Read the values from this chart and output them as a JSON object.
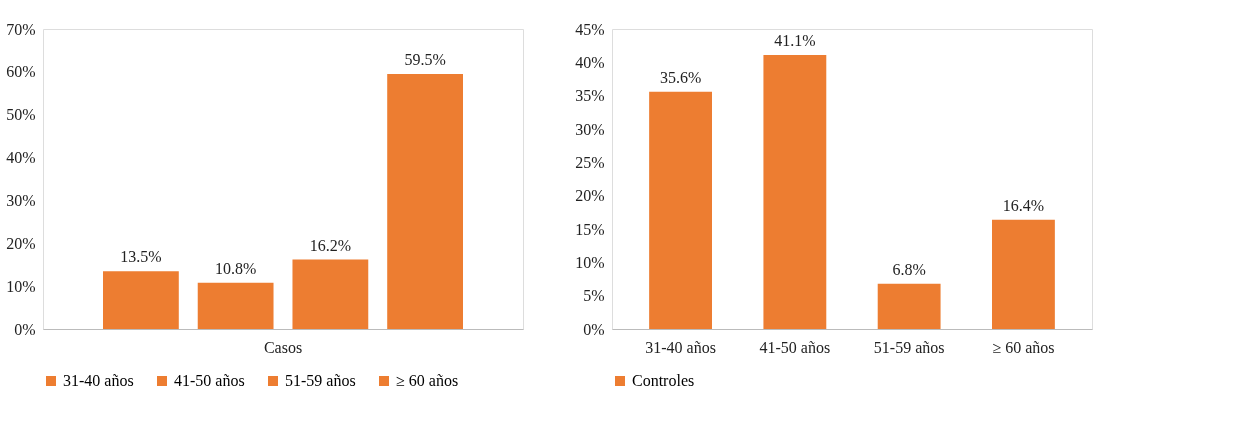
{
  "chart_data": [
    {
      "type": "bar",
      "categories": [
        "Casos"
      ],
      "ylim": [
        0,
        70
      ],
      "yticks": [
        {
          "value": 0,
          "label": "0%"
        },
        {
          "value": 10,
          "label": "10%"
        },
        {
          "value": 20,
          "label": "20%"
        },
        {
          "value": 30,
          "label": "30%"
        },
        {
          "value": 40,
          "label": "40%"
        },
        {
          "value": 50,
          "label": "50%"
        },
        {
          "value": 60,
          "label": "60%"
        },
        {
          "value": 70,
          "label": "70%"
        }
      ],
      "grid": false,
      "legend": "bottom",
      "series": [
        {
          "name": "31-40 años",
          "color": "#ed7d31",
          "values": [
            13.5
          ],
          "value_labels": [
            "13.5%"
          ]
        },
        {
          "name": "41-50 años",
          "color": "#ed7d31",
          "values": [
            10.8
          ],
          "value_labels": [
            "10.8%"
          ]
        },
        {
          "name": "51-59 años",
          "color": "#ed7d31",
          "values": [
            16.2
          ],
          "value_labels": [
            "16.2%"
          ]
        },
        {
          "name": "≥ 60 años",
          "color": "#ed7d31",
          "values": [
            59.5
          ],
          "value_labels": [
            "59.5%"
          ]
        }
      ]
    },
    {
      "type": "bar",
      "categories": [
        "31-40 años",
        "41-50 años",
        "51-59 años",
        "≥ 60 años"
      ],
      "ylim": [
        0,
        45
      ],
      "yticks": [
        {
          "value": 0,
          "label": "0%"
        },
        {
          "value": 5,
          "label": "5%"
        },
        {
          "value": 10,
          "label": "10%"
        },
        {
          "value": 15,
          "label": "15%"
        },
        {
          "value": 20,
          "label": "20%"
        },
        {
          "value": 25,
          "label": "25%"
        },
        {
          "value": 30,
          "label": "30%"
        },
        {
          "value": 35,
          "label": "35%"
        },
        {
          "value": 40,
          "label": "40%"
        },
        {
          "value": 45,
          "label": "45%"
        }
      ],
      "grid": false,
      "legend": "bottom",
      "series": [
        {
          "name": "Controles",
          "color": "#ed7d31",
          "values": [
            35.6,
            41.1,
            6.8,
            16.4
          ],
          "value_labels": [
            "35.6%",
            "41.1%",
            "6.8%",
            "16.4%"
          ]
        }
      ]
    }
  ]
}
